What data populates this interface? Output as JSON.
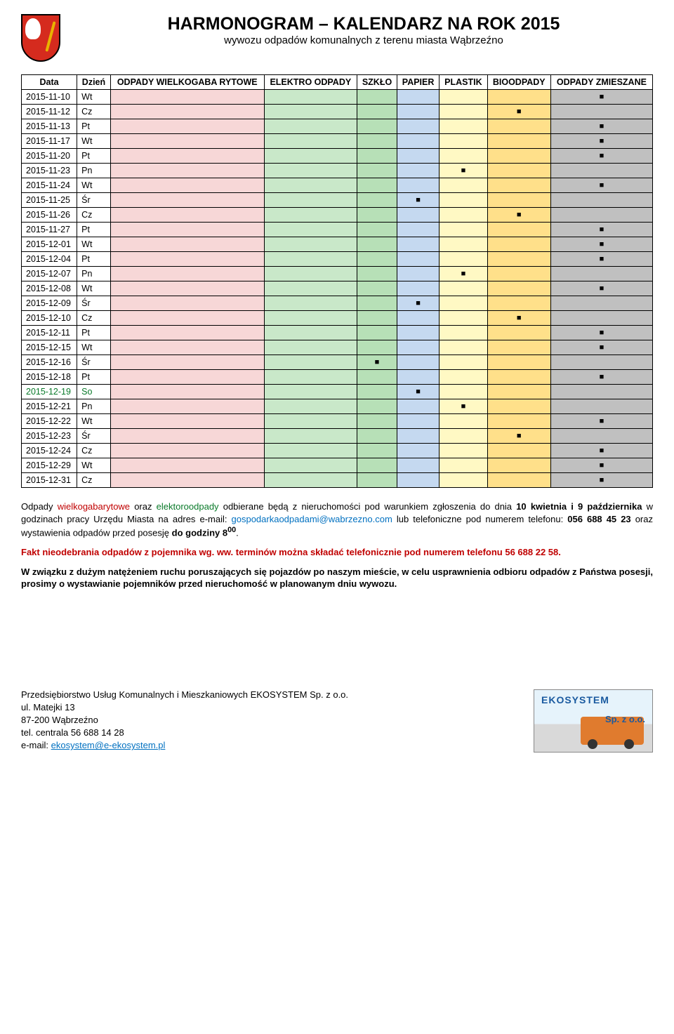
{
  "header": {
    "title": "HARMONOGRAM – KALENDARZ NA ROK 2015",
    "subtitle": "wywozu odpadów komunalnych z terenu miasta Wąbrzeźno"
  },
  "columns": [
    {
      "key": "data",
      "label": "Data",
      "bg": ""
    },
    {
      "key": "dzien",
      "label": "Dzień",
      "bg": ""
    },
    {
      "key": "wielkogaba",
      "label": "ODPADY WIELKOGABA RYTOWE",
      "bg": "col-wielkogaba"
    },
    {
      "key": "elektro",
      "label": "ELEKTRO ODPADY",
      "bg": "col-elektro"
    },
    {
      "key": "szklo",
      "label": "SZKŁO",
      "bg": "col-szklo"
    },
    {
      "key": "papier",
      "label": "PAPIER",
      "bg": "col-papier"
    },
    {
      "key": "plastik",
      "label": "PLASTIK",
      "bg": "col-plastik"
    },
    {
      "key": "bioodpady",
      "label": "BIOODPADY",
      "bg": "col-bioodpady"
    },
    {
      "key": "zmieszane",
      "label": "ODPADY ZMIESZANE",
      "bg": "col-zmieszane"
    }
  ],
  "rows": [
    {
      "data": "2015-11-10",
      "dzien": "Wt",
      "marks": {
        "zmieszane": true
      }
    },
    {
      "data": "2015-11-12",
      "dzien": "Cz",
      "marks": {
        "bioodpady": true
      }
    },
    {
      "data": "2015-11-13",
      "dzien": "Pt",
      "marks": {
        "zmieszane": true
      }
    },
    {
      "data": "2015-11-17",
      "dzien": "Wt",
      "marks": {
        "zmieszane": true
      }
    },
    {
      "data": "2015-11-20",
      "dzien": "Pt",
      "marks": {
        "zmieszane": true
      }
    },
    {
      "data": "2015-11-23",
      "dzien": "Pn",
      "marks": {
        "plastik": true
      }
    },
    {
      "data": "2015-11-24",
      "dzien": "Wt",
      "marks": {
        "zmieszane": true
      }
    },
    {
      "data": "2015-11-25",
      "dzien": "Śr",
      "marks": {
        "papier": true
      }
    },
    {
      "data": "2015-11-26",
      "dzien": "Cz",
      "marks": {
        "bioodpady": true
      }
    },
    {
      "data": "2015-11-27",
      "dzien": "Pt",
      "marks": {
        "zmieszane": true
      }
    },
    {
      "data": "2015-12-01",
      "dzien": "Wt",
      "marks": {
        "zmieszane": true
      }
    },
    {
      "data": "2015-12-04",
      "dzien": "Pt",
      "marks": {
        "zmieszane": true
      }
    },
    {
      "data": "2015-12-07",
      "dzien": "Pn",
      "marks": {
        "plastik": true
      }
    },
    {
      "data": "2015-12-08",
      "dzien": "Wt",
      "marks": {
        "zmieszane": true
      }
    },
    {
      "data": "2015-12-09",
      "dzien": "Śr",
      "marks": {
        "papier": true
      }
    },
    {
      "data": "2015-12-10",
      "dzien": "Cz",
      "marks": {
        "bioodpady": true
      }
    },
    {
      "data": "2015-12-11",
      "dzien": "Pt",
      "marks": {
        "zmieszane": true
      }
    },
    {
      "data": "2015-12-15",
      "dzien": "Wt",
      "marks": {
        "zmieszane": true
      }
    },
    {
      "data": "2015-12-16",
      "dzien": "Śr",
      "marks": {
        "szklo": true
      }
    },
    {
      "data": "2015-12-18",
      "dzien": "Pt",
      "marks": {
        "zmieszane": true
      }
    },
    {
      "data": "2015-12-19",
      "dzien": "So",
      "green": true,
      "marks": {
        "papier": true
      }
    },
    {
      "data": "2015-12-21",
      "dzien": "Pn",
      "marks": {
        "plastik": true
      }
    },
    {
      "data": "2015-12-22",
      "dzien": "Wt",
      "marks": {
        "zmieszane": true
      }
    },
    {
      "data": "2015-12-23",
      "dzien": "Śr",
      "marks": {
        "bioodpady": true
      }
    },
    {
      "data": "2015-12-24",
      "dzien": "Cz",
      "marks": {
        "zmieszane": true
      }
    },
    {
      "data": "2015-12-29",
      "dzien": "Wt",
      "marks": {
        "zmieszane": true
      }
    },
    {
      "data": "2015-12-31",
      "dzien": "Cz",
      "marks": {
        "zmieszane": true
      }
    }
  ],
  "marker": "■",
  "note1": {
    "p1": "Odpady ",
    "p2": "wielkogabarytowe",
    "p3": " oraz ",
    "p4": "elektoroodpady",
    "p5": " odbierane będą z nieruchomości pod warunkiem zgłoszenia do dnia ",
    "p6": "10 kwietnia i 9 października",
    "p7": " w godzinach pracy Urzędu Miasta na adres e-mail: ",
    "p8": "gospodarkaodpadami@wabrzezno.com",
    "p9": " lub telefoniczne pod numerem telefonu: ",
    "p10": "056 688 45 23",
    "p11": " oraz wystawienia odpadów przed posesję ",
    "p12": "do godziny 8",
    "p13": "00",
    "p14": "."
  },
  "note2": {
    "a": "Fakt nieodebrania odpadów z pojemnika wg. ww. terminów można składać telefonicznie pod numerem telefonu 56 688 22 58."
  },
  "note3": "W związku z dużym natężeniem ruchu poruszających się pojazdów po naszym mieście, w celu usprawnienia odbioru odpadów z Państwa posesji, prosimy o wystawianie pojemników przed nieruchomość w planowanym dniu wywozu.",
  "footer": {
    "line1": "Przedsiębiorstwo Usług Komunalnych i Mieszkaniowych EKOSYSTEM Sp. z o.o.",
    "line2": "ul. Matejki 13",
    "line3": "87-200 Wąbrzeźno",
    "line4": "tel. centrala 56 688 14 28",
    "line5_label": "e-mail: ",
    "line5_email": "ekosystem@e-ekosystem.pl",
    "logo_t1": "EKOSYSTEM",
    "logo_t2": "Sp. z o.o."
  }
}
